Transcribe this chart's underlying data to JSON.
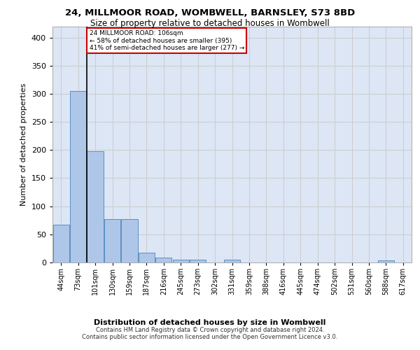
{
  "title_line1": "24, MILLMOOR ROAD, WOMBWELL, BARNSLEY, S73 8BD",
  "title_line2": "Size of property relative to detached houses in Wombwell",
  "xlabel": "Distribution of detached houses by size in Wombwell",
  "ylabel": "Number of detached properties",
  "bins": [
    "44sqm",
    "73sqm",
    "101sqm",
    "130sqm",
    "159sqm",
    "187sqm",
    "216sqm",
    "245sqm",
    "273sqm",
    "302sqm",
    "331sqm",
    "359sqm",
    "388sqm",
    "416sqm",
    "445sqm",
    "474sqm",
    "502sqm",
    "531sqm",
    "560sqm",
    "588sqm",
    "617sqm"
  ],
  "bar_heights": [
    67,
    305,
    198,
    77,
    77,
    18,
    9,
    5,
    5,
    0,
    5,
    0,
    0,
    0,
    0,
    0,
    0,
    0,
    0,
    4,
    0
  ],
  "bar_color": "#aec6e8",
  "bar_edge_color": "#5a8fc2",
  "annotation_line1": "24 MILLMOOR ROAD: 106sqm",
  "annotation_line2": "← 58% of detached houses are smaller (395)",
  "annotation_line3": "41% of semi-detached houses are larger (277) →",
  "annotation_box_color": "#ffffff",
  "annotation_border_color": "#cc0000",
  "vline_color": "#000000",
  "ylim": [
    0,
    420
  ],
  "yticks": [
    0,
    50,
    100,
    150,
    200,
    250,
    300,
    350,
    400
  ],
  "grid_color": "#cccccc",
  "background_color": "#dce6f5",
  "footer_line1": "Contains HM Land Registry data © Crown copyright and database right 2024.",
  "footer_line2": "Contains public sector information licensed under the Open Government Licence v3.0."
}
